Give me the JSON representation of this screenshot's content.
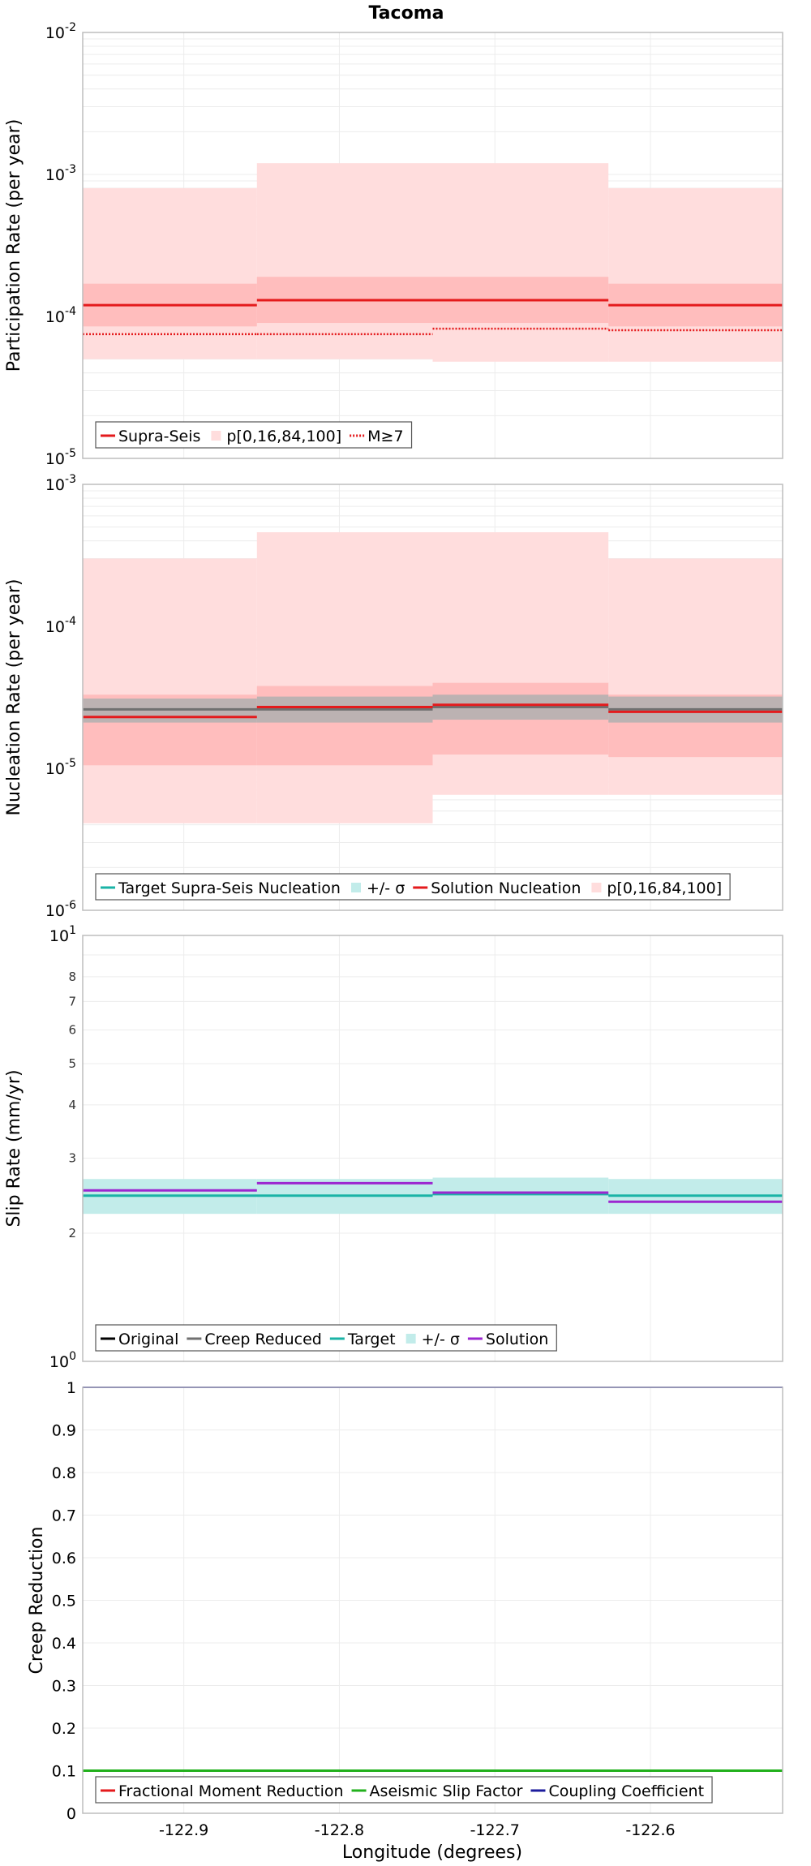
{
  "title": "Tacoma",
  "xlabel": "Longitude (degrees)",
  "x_ticks": [
    -122.9,
    -122.8,
    -122.7,
    -122.6
  ],
  "x_tick_labels": [
    "-122.9",
    "-122.8",
    "-122.7",
    "-122.6"
  ],
  "xlim": [
    -122.965,
    -122.515
  ],
  "colors": {
    "red": "#e41a1c",
    "red_band_light": "#ffdddd",
    "red_band_dark": "#ffbdbd",
    "gray_line": "#707070",
    "gray_band": "#b0b0b0",
    "cyan": "#1ab3a6",
    "cyan_band": "#c2ecea",
    "purple": "#9c27d0",
    "green": "#22b01c",
    "blue": "#1c1c9c",
    "black": "#000000"
  },
  "chart_data": [
    {
      "type": "line",
      "name": "participation",
      "ylabel": "Participation Rate (per year)",
      "yscale": "log",
      "ylim": [
        1e-05,
        0.01
      ],
      "y_major_exponents": [
        -5,
        -4,
        -3,
        -2
      ],
      "x_edges": [
        -122.965,
        -122.853,
        -122.74,
        -122.627,
        -122.515
      ],
      "bands": [
        {
          "label": "p0-p100",
          "lower": [
            5e-05,
            5e-05,
            4.8e-05,
            4.8e-05
          ],
          "upper": [
            0.0008,
            0.0012,
            0.0012,
            0.0008
          ]
        },
        {
          "label": "p16-p84",
          "lower": [
            8.5e-05,
            9e-05,
            9e-05,
            8.5e-05
          ],
          "upper": [
            0.00017,
            0.00019,
            0.00019,
            0.00017
          ]
        }
      ],
      "series": [
        {
          "name": "Supra-Seis",
          "values": [
            0.00012,
            0.00013,
            0.00013,
            0.00012
          ],
          "style": "solid"
        },
        {
          "name": "M≥7",
          "values": [
            7.5e-05,
            7.5e-05,
            8.2e-05,
            8e-05
          ],
          "style": "dotted"
        }
      ],
      "legend": [
        "Supra-Seis",
        "p[0,16,84,100]",
        "M≥7"
      ]
    },
    {
      "type": "line",
      "name": "nucleation",
      "ylabel": "Nucleation Rate (per year)",
      "yscale": "log",
      "ylim": [
        1e-06,
        0.001
      ],
      "y_major_exponents": [
        -6,
        -5,
        -4,
        -3
      ],
      "x_edges": [
        -122.965,
        -122.853,
        -122.74,
        -122.627,
        -122.515
      ],
      "bands": [
        {
          "label": "p0-p100",
          "lower": [
            4.1e-06,
            4.1e-06,
            6.5e-06,
            6.5e-06
          ],
          "upper": [
            0.0003,
            0.00046,
            0.00046,
            0.0003
          ]
        },
        {
          "label": "p16-p84",
          "lower": [
            1.05e-05,
            1.05e-05,
            1.25e-05,
            1.2e-05
          ],
          "upper": [
            3.3e-05,
            3.8e-05,
            4e-05,
            3.3e-05
          ]
        }
      ],
      "sigma_band": {
        "lower": [
          2.1e-05,
          2.1e-05,
          2.2e-05,
          2.1e-05
        ],
        "upper": [
          3.1e-05,
          3.2e-05,
          3.3e-05,
          3.2e-05
        ]
      },
      "target": [
        2.6e-05,
        2.6e-05,
        2.7e-05,
        2.6e-05
      ],
      "solution": [
        2.3e-05,
        2.7e-05,
        2.8e-05,
        2.5e-05
      ],
      "legend": [
        "Target Supra-Seis Nucleation",
        "+/- σ",
        "Solution Nucleation",
        "p[0,16,84,100]"
      ]
    },
    {
      "type": "line",
      "name": "slip",
      "ylabel": "Slip Rate (mm/yr)",
      "yscale": "log",
      "ylim": [
        1,
        10
      ],
      "y_major_labels": [
        {
          "exp": 0,
          "v": 1
        },
        {
          "exp": 1,
          "v": 10
        }
      ],
      "y_minor_labels": [
        2,
        3,
        4,
        5,
        6,
        7,
        8
      ],
      "x_edges": [
        -122.965,
        -122.853,
        -122.74,
        -122.627,
        -122.515
      ],
      "sigma_band": {
        "lower": [
          2.22,
          2.22,
          2.22,
          2.22
        ],
        "upper": [
          2.68,
          2.68,
          2.7,
          2.68
        ]
      },
      "target": [
        2.45,
        2.45,
        2.47,
        2.45
      ],
      "solution": [
        2.52,
        2.62,
        2.49,
        2.37
      ],
      "legend": [
        "Original",
        "Creep Reduced",
        "Target",
        "+/- σ",
        "Solution"
      ]
    },
    {
      "type": "line",
      "name": "creep",
      "ylabel": "Creep Reduction",
      "yscale": "linear",
      "ylim": [
        0,
        1
      ],
      "y_ticks": [
        0,
        0.1,
        0.2,
        0.3,
        0.4,
        0.5,
        0.6,
        0.7,
        0.8,
        0.9,
        1
      ],
      "y_tick_labels": [
        "0",
        "0.1",
        "0.2",
        "0.3",
        "0.4",
        "0.5",
        "0.6",
        "0.7",
        "0.8",
        "0.9",
        "1"
      ],
      "aseismic": 0.1,
      "coupling": 1.0,
      "legend": [
        "Fractional Moment Reduction",
        "Aseismic Slip Factor",
        "Coupling Coefficient"
      ]
    }
  ]
}
